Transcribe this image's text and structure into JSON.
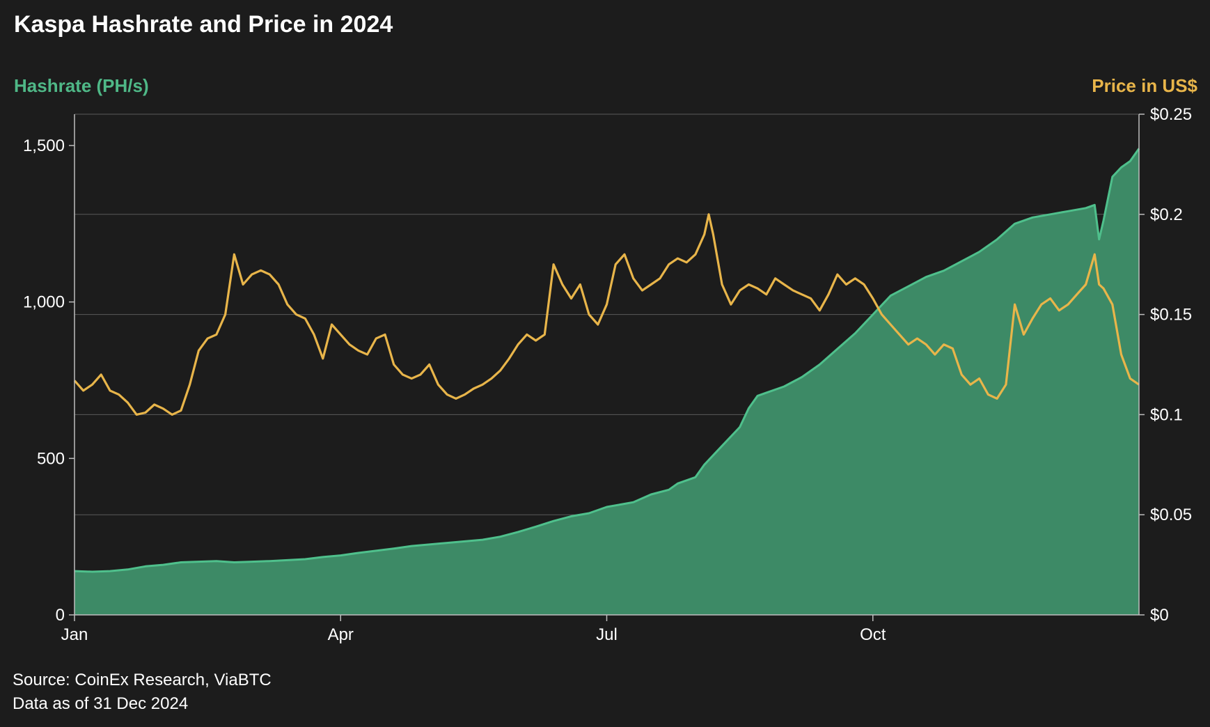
{
  "chart_data": {
    "type": "area",
    "title": "Kaspa Hashrate and Price in 2024",
    "left_axis_label": "Hashrate (PH/s)",
    "right_axis_label": "Price in US$",
    "x_axis": {
      "ticks": [
        {
          "month": 0,
          "label": "Jan"
        },
        {
          "month": 3,
          "label": "Apr"
        },
        {
          "month": 6,
          "label": "Jul"
        },
        {
          "month": 9,
          "label": "Oct"
        }
      ],
      "range_months": [
        0,
        12
      ]
    },
    "y_left": {
      "range": [
        0,
        1600
      ],
      "ticks": [
        {
          "value": 0,
          "label": "0"
        },
        {
          "value": 500,
          "label": "500"
        },
        {
          "value": 1000,
          "label": "1,000"
        },
        {
          "value": 1500,
          "label": "1,500"
        }
      ]
    },
    "y_right": {
      "range": [
        0,
        0.25
      ],
      "ticks": [
        {
          "value": 0,
          "label": "$0"
        },
        {
          "value": 0.05,
          "label": "$0.05"
        },
        {
          "value": 0.1,
          "label": "$0.1"
        },
        {
          "value": 0.15,
          "label": "$0.15"
        },
        {
          "value": 0.2,
          "label": "$0.2"
        },
        {
          "value": 0.25,
          "label": "$0.25"
        }
      ]
    },
    "grid": "horizontal, right axis",
    "series": [
      {
        "name": "Hashrate (PH/s)",
        "kind": "area",
        "color": "#3d8a66",
        "line_color": "#4fc08c",
        "axis": "left",
        "points": [
          [
            0.0,
            140
          ],
          [
            0.2,
            138
          ],
          [
            0.4,
            140
          ],
          [
            0.6,
            145
          ],
          [
            0.8,
            155
          ],
          [
            1.0,
            160
          ],
          [
            1.2,
            168
          ],
          [
            1.4,
            170
          ],
          [
            1.6,
            172
          ],
          [
            1.8,
            168
          ],
          [
            2.0,
            170
          ],
          [
            2.2,
            172
          ],
          [
            2.4,
            175
          ],
          [
            2.6,
            178
          ],
          [
            2.8,
            185
          ],
          [
            3.0,
            190
          ],
          [
            3.2,
            198
          ],
          [
            3.4,
            205
          ],
          [
            3.6,
            212
          ],
          [
            3.8,
            220
          ],
          [
            4.0,
            225
          ],
          [
            4.2,
            230
          ],
          [
            4.4,
            235
          ],
          [
            4.6,
            240
          ],
          [
            4.8,
            250
          ],
          [
            5.0,
            265
          ],
          [
            5.2,
            282
          ],
          [
            5.4,
            300
          ],
          [
            5.6,
            315
          ],
          [
            5.8,
            325
          ],
          [
            6.0,
            345
          ],
          [
            6.2,
            355
          ],
          [
            6.3,
            360
          ],
          [
            6.5,
            385
          ],
          [
            6.7,
            400
          ],
          [
            6.8,
            420
          ],
          [
            7.0,
            440
          ],
          [
            7.1,
            480
          ],
          [
            7.3,
            540
          ],
          [
            7.5,
            600
          ],
          [
            7.6,
            660
          ],
          [
            7.7,
            700
          ],
          [
            7.8,
            710
          ],
          [
            8.0,
            730
          ],
          [
            8.2,
            760
          ],
          [
            8.4,
            800
          ],
          [
            8.6,
            850
          ],
          [
            8.8,
            900
          ],
          [
            9.0,
            960
          ],
          [
            9.2,
            1020
          ],
          [
            9.4,
            1050
          ],
          [
            9.6,
            1080
          ],
          [
            9.8,
            1100
          ],
          [
            10.0,
            1130
          ],
          [
            10.2,
            1160
          ],
          [
            10.4,
            1200
          ],
          [
            10.6,
            1250
          ],
          [
            10.8,
            1270
          ],
          [
            11.0,
            1280
          ],
          [
            11.2,
            1290
          ],
          [
            11.4,
            1300
          ],
          [
            11.5,
            1310
          ],
          [
            11.55,
            1200
          ],
          [
            11.6,
            1260
          ],
          [
            11.7,
            1400
          ],
          [
            11.8,
            1430
          ],
          [
            11.9,
            1450
          ],
          [
            12.0,
            1490
          ]
        ]
      },
      {
        "name": "Price in US$",
        "kind": "line",
        "color": "#e8b54a",
        "axis": "right",
        "points": [
          [
            0.0,
            0.117
          ],
          [
            0.1,
            0.112
          ],
          [
            0.2,
            0.115
          ],
          [
            0.3,
            0.12
          ],
          [
            0.4,
            0.112
          ],
          [
            0.5,
            0.11
          ],
          [
            0.6,
            0.106
          ],
          [
            0.7,
            0.1
          ],
          [
            0.8,
            0.101
          ],
          [
            0.9,
            0.105
          ],
          [
            1.0,
            0.103
          ],
          [
            1.1,
            0.1
          ],
          [
            1.2,
            0.102
          ],
          [
            1.3,
            0.115
          ],
          [
            1.4,
            0.132
          ],
          [
            1.5,
            0.138
          ],
          [
            1.6,
            0.14
          ],
          [
            1.7,
            0.15
          ],
          [
            1.8,
            0.18
          ],
          [
            1.9,
            0.165
          ],
          [
            2.0,
            0.17
          ],
          [
            2.1,
            0.172
          ],
          [
            2.2,
            0.17
          ],
          [
            2.3,
            0.165
          ],
          [
            2.4,
            0.155
          ],
          [
            2.5,
            0.15
          ],
          [
            2.6,
            0.148
          ],
          [
            2.7,
            0.14
          ],
          [
            2.8,
            0.128
          ],
          [
            2.9,
            0.145
          ],
          [
            3.0,
            0.14
          ],
          [
            3.1,
            0.135
          ],
          [
            3.2,
            0.132
          ],
          [
            3.3,
            0.13
          ],
          [
            3.4,
            0.138
          ],
          [
            3.5,
            0.14
          ],
          [
            3.6,
            0.125
          ],
          [
            3.7,
            0.12
          ],
          [
            3.8,
            0.118
          ],
          [
            3.9,
            0.12
          ],
          [
            4.0,
            0.125
          ],
          [
            4.1,
            0.115
          ],
          [
            4.2,
            0.11
          ],
          [
            4.3,
            0.108
          ],
          [
            4.4,
            0.11
          ],
          [
            4.5,
            0.113
          ],
          [
            4.6,
            0.115
          ],
          [
            4.7,
            0.118
          ],
          [
            4.8,
            0.122
          ],
          [
            4.9,
            0.128
          ],
          [
            5.0,
            0.135
          ],
          [
            5.1,
            0.14
          ],
          [
            5.2,
            0.137
          ],
          [
            5.3,
            0.14
          ],
          [
            5.4,
            0.175
          ],
          [
            5.5,
            0.165
          ],
          [
            5.6,
            0.158
          ],
          [
            5.7,
            0.165
          ],
          [
            5.8,
            0.15
          ],
          [
            5.9,
            0.145
          ],
          [
            6.0,
            0.155
          ],
          [
            6.1,
            0.175
          ],
          [
            6.2,
            0.18
          ],
          [
            6.3,
            0.168
          ],
          [
            6.4,
            0.162
          ],
          [
            6.5,
            0.165
          ],
          [
            6.6,
            0.168
          ],
          [
            6.7,
            0.175
          ],
          [
            6.8,
            0.178
          ],
          [
            6.9,
            0.176
          ],
          [
            7.0,
            0.18
          ],
          [
            7.1,
            0.19
          ],
          [
            7.15,
            0.2
          ],
          [
            7.2,
            0.19
          ],
          [
            7.3,
            0.165
          ],
          [
            7.4,
            0.155
          ],
          [
            7.5,
            0.162
          ],
          [
            7.6,
            0.165
          ],
          [
            7.7,
            0.163
          ],
          [
            7.8,
            0.16
          ],
          [
            7.9,
            0.168
          ],
          [
            8.0,
            0.165
          ],
          [
            8.1,
            0.162
          ],
          [
            8.2,
            0.16
          ],
          [
            8.3,
            0.158
          ],
          [
            8.4,
            0.152
          ],
          [
            8.5,
            0.16
          ],
          [
            8.6,
            0.17
          ],
          [
            8.7,
            0.165
          ],
          [
            8.8,
            0.168
          ],
          [
            8.9,
            0.165
          ],
          [
            9.0,
            0.158
          ],
          [
            9.1,
            0.15
          ],
          [
            9.2,
            0.145
          ],
          [
            9.3,
            0.14
          ],
          [
            9.4,
            0.135
          ],
          [
            9.5,
            0.138
          ],
          [
            9.6,
            0.135
          ],
          [
            9.7,
            0.13
          ],
          [
            9.8,
            0.135
          ],
          [
            9.9,
            0.133
          ],
          [
            10.0,
            0.12
          ],
          [
            10.1,
            0.115
          ],
          [
            10.2,
            0.118
          ],
          [
            10.3,
            0.11
          ],
          [
            10.4,
            0.108
          ],
          [
            10.5,
            0.115
          ],
          [
            10.6,
            0.155
          ],
          [
            10.7,
            0.14
          ],
          [
            10.8,
            0.148
          ],
          [
            10.9,
            0.155
          ],
          [
            11.0,
            0.158
          ],
          [
            11.1,
            0.152
          ],
          [
            11.2,
            0.155
          ],
          [
            11.3,
            0.16
          ],
          [
            11.4,
            0.165
          ],
          [
            11.5,
            0.18
          ],
          [
            11.55,
            0.165
          ],
          [
            11.6,
            0.163
          ],
          [
            11.7,
            0.155
          ],
          [
            11.8,
            0.13
          ],
          [
            11.9,
            0.118
          ],
          [
            12.0,
            0.115
          ]
        ]
      }
    ]
  },
  "footer": {
    "source": "Source: CoinEx Research, ViaBTC",
    "data_as_of": "Data as of 31 Dec 2024"
  }
}
